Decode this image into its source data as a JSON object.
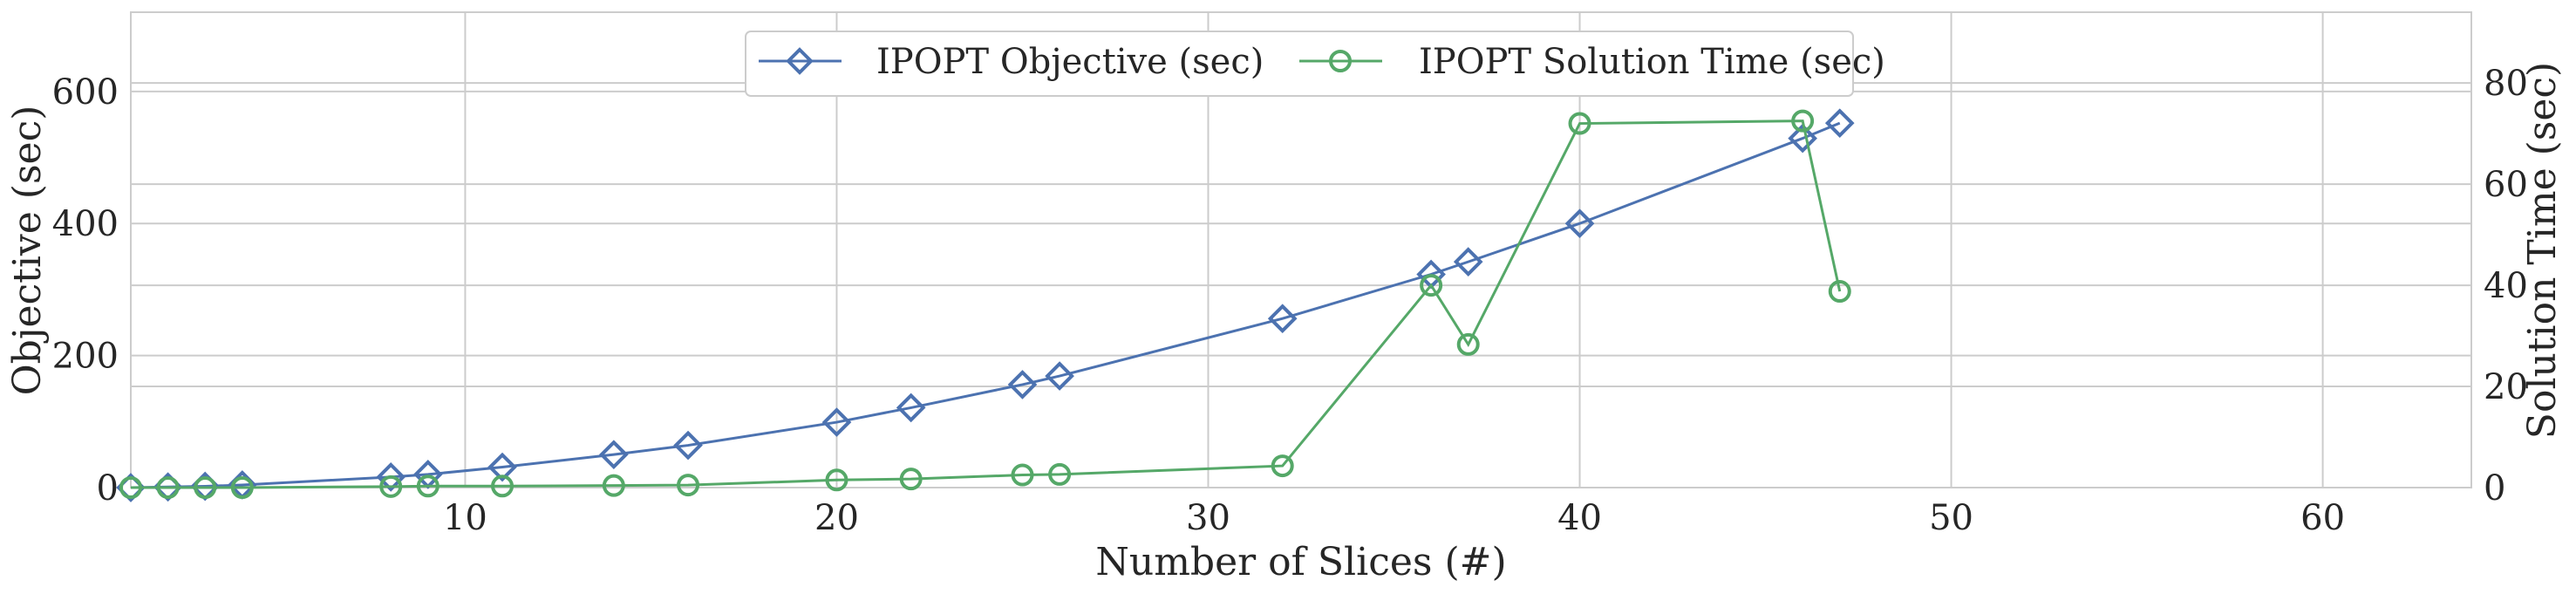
{
  "chart_data": {
    "type": "line",
    "xlabel": "Number of Slices (#)",
    "ylabel_left": "Objective (sec)",
    "ylabel_right": "Solution Time (sec)",
    "xlim": [
      1,
      64
    ],
    "ylim_left": [
      0,
      720
    ],
    "ylim_right": [
      0,
      94
    ],
    "x_ticks": [
      10,
      20,
      30,
      40,
      50,
      60
    ],
    "y_left_ticks": [
      0,
      200,
      400,
      600
    ],
    "y_right_ticks": [
      0,
      20,
      40,
      60,
      80
    ],
    "grid": true,
    "legend_position": "top-center",
    "series": [
      {
        "name": "IPOPT Objective (sec)",
        "axis": "left",
        "marker": "diamond",
        "color": "#4c72b0",
        "x": [
          1,
          2,
          3,
          4,
          8,
          9,
          11,
          14,
          16,
          20,
          22,
          25,
          26,
          32,
          36,
          37,
          40,
          46,
          47
        ],
        "y": [
          0,
          1,
          2,
          4,
          16,
          20,
          31,
          50,
          64,
          99,
          121,
          156,
          169,
          256,
          323,
          342,
          400,
          529,
          552
        ]
      },
      {
        "name": "IPOPT Solution Time (sec)",
        "axis": "right",
        "marker": "circle",
        "color": "#55a868",
        "x": [
          1,
          2,
          3,
          4,
          8,
          9,
          11,
          14,
          16,
          20,
          22,
          25,
          26,
          32,
          36,
          37,
          40,
          46,
          47
        ],
        "y": [
          0,
          0,
          0,
          0,
          0.2,
          0.3,
          0.3,
          0.4,
          0.5,
          1.5,
          1.7,
          2.5,
          2.6,
          4.3,
          40.0,
          28.3,
          72.0,
          72.5,
          38.8
        ]
      }
    ]
  }
}
